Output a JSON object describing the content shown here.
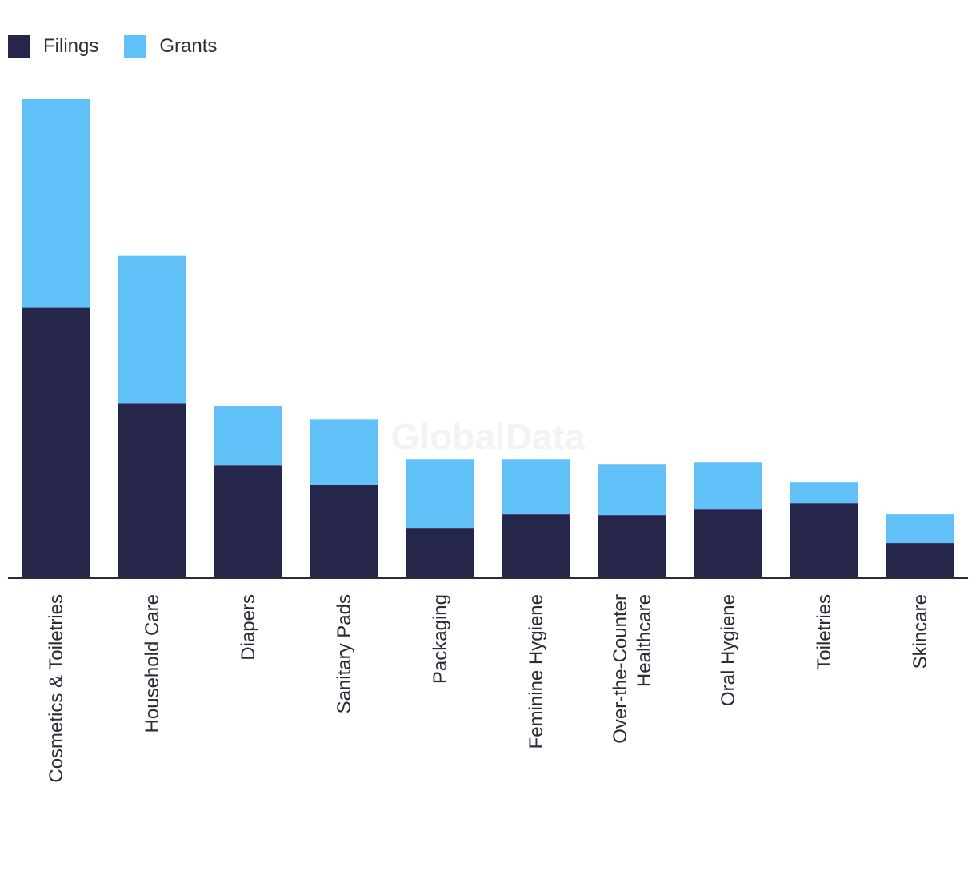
{
  "chart_data": {
    "type": "bar",
    "stacked": true,
    "categories": [
      "Cosmetics & Toiletries",
      "Household Care",
      "Diapers",
      "Sanitary Pads",
      "Packaging",
      "Feminine Hygiene",
      "Over-the-Counter Healthcare",
      "Oral Hygiene",
      "Toiletries",
      "Skincare"
    ],
    "category_lines": [
      [
        "Cosmetics & Toiletries"
      ],
      [
        "Household Care"
      ],
      [
        "Diapers"
      ],
      [
        "Sanitary Pads"
      ],
      [
        "Packaging"
      ],
      [
        "Feminine Hygiene"
      ],
      [
        "Over-the-Counter",
        "Healthcare"
      ],
      [
        "Oral Hygiene"
      ],
      [
        "Toiletries"
      ],
      [
        "Skincare"
      ]
    ],
    "series": [
      {
        "name": "Filings",
        "color": "#26264a",
        "values": [
          339,
          219,
          141,
          117,
          63,
          80,
          79,
          86,
          94,
          44
        ]
      },
      {
        "name": "Grants",
        "color": "#62c1f8",
        "values": [
          261,
          185,
          75,
          82,
          86,
          69,
          64,
          59,
          26,
          36
        ]
      }
    ],
    "ylim": [
      0,
      600
    ],
    "grid": false,
    "legend_position": "top-left",
    "watermark": "GlobalData"
  }
}
